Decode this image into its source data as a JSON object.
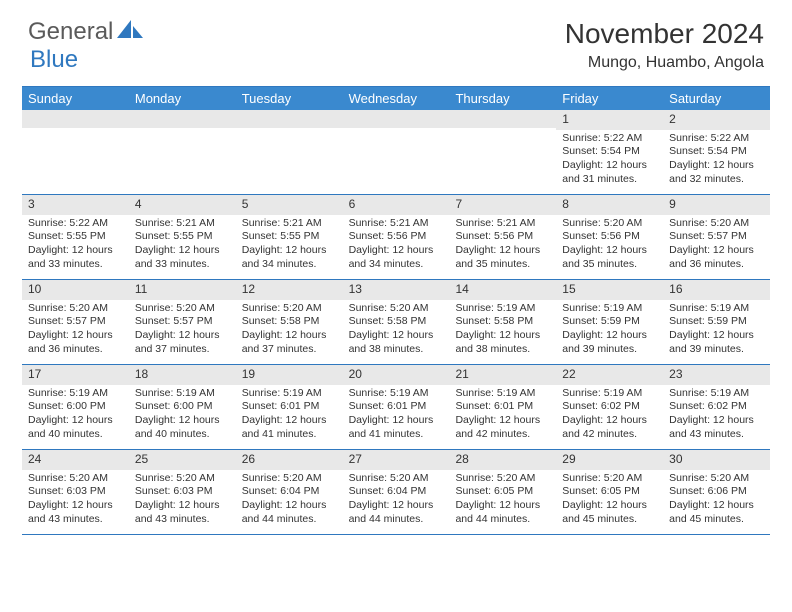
{
  "logo": {
    "general": "General",
    "blue": "Blue"
  },
  "header": {
    "month_title": "November 2024",
    "location": "Mungo, Huambo, Angola"
  },
  "colors": {
    "header_bg": "#3a89cf",
    "border": "#2f78bf",
    "daynum_bg": "#e8e8e8",
    "text": "#333333",
    "logo_gray": "#5a5a5a",
    "logo_blue": "#2f78bf"
  },
  "day_names": [
    "Sunday",
    "Monday",
    "Tuesday",
    "Wednesday",
    "Thursday",
    "Friday",
    "Saturday"
  ],
  "weeks": [
    [
      {
        "n": "",
        "sunrise": "",
        "sunset": "",
        "daylight_a": "",
        "daylight_b": ""
      },
      {
        "n": "",
        "sunrise": "",
        "sunset": "",
        "daylight_a": "",
        "daylight_b": ""
      },
      {
        "n": "",
        "sunrise": "",
        "sunset": "",
        "daylight_a": "",
        "daylight_b": ""
      },
      {
        "n": "",
        "sunrise": "",
        "sunset": "",
        "daylight_a": "",
        "daylight_b": ""
      },
      {
        "n": "",
        "sunrise": "",
        "sunset": "",
        "daylight_a": "",
        "daylight_b": ""
      },
      {
        "n": "1",
        "sunrise": "Sunrise: 5:22 AM",
        "sunset": "Sunset: 5:54 PM",
        "daylight_a": "Daylight: 12 hours",
        "daylight_b": "and 31 minutes."
      },
      {
        "n": "2",
        "sunrise": "Sunrise: 5:22 AM",
        "sunset": "Sunset: 5:54 PM",
        "daylight_a": "Daylight: 12 hours",
        "daylight_b": "and 32 minutes."
      }
    ],
    [
      {
        "n": "3",
        "sunrise": "Sunrise: 5:22 AM",
        "sunset": "Sunset: 5:55 PM",
        "daylight_a": "Daylight: 12 hours",
        "daylight_b": "and 33 minutes."
      },
      {
        "n": "4",
        "sunrise": "Sunrise: 5:21 AM",
        "sunset": "Sunset: 5:55 PM",
        "daylight_a": "Daylight: 12 hours",
        "daylight_b": "and 33 minutes."
      },
      {
        "n": "5",
        "sunrise": "Sunrise: 5:21 AM",
        "sunset": "Sunset: 5:55 PM",
        "daylight_a": "Daylight: 12 hours",
        "daylight_b": "and 34 minutes."
      },
      {
        "n": "6",
        "sunrise": "Sunrise: 5:21 AM",
        "sunset": "Sunset: 5:56 PM",
        "daylight_a": "Daylight: 12 hours",
        "daylight_b": "and 34 minutes."
      },
      {
        "n": "7",
        "sunrise": "Sunrise: 5:21 AM",
        "sunset": "Sunset: 5:56 PM",
        "daylight_a": "Daylight: 12 hours",
        "daylight_b": "and 35 minutes."
      },
      {
        "n": "8",
        "sunrise": "Sunrise: 5:20 AM",
        "sunset": "Sunset: 5:56 PM",
        "daylight_a": "Daylight: 12 hours",
        "daylight_b": "and 35 minutes."
      },
      {
        "n": "9",
        "sunrise": "Sunrise: 5:20 AM",
        "sunset": "Sunset: 5:57 PM",
        "daylight_a": "Daylight: 12 hours",
        "daylight_b": "and 36 minutes."
      }
    ],
    [
      {
        "n": "10",
        "sunrise": "Sunrise: 5:20 AM",
        "sunset": "Sunset: 5:57 PM",
        "daylight_a": "Daylight: 12 hours",
        "daylight_b": "and 36 minutes."
      },
      {
        "n": "11",
        "sunrise": "Sunrise: 5:20 AM",
        "sunset": "Sunset: 5:57 PM",
        "daylight_a": "Daylight: 12 hours",
        "daylight_b": "and 37 minutes."
      },
      {
        "n": "12",
        "sunrise": "Sunrise: 5:20 AM",
        "sunset": "Sunset: 5:58 PM",
        "daylight_a": "Daylight: 12 hours",
        "daylight_b": "and 37 minutes."
      },
      {
        "n": "13",
        "sunrise": "Sunrise: 5:20 AM",
        "sunset": "Sunset: 5:58 PM",
        "daylight_a": "Daylight: 12 hours",
        "daylight_b": "and 38 minutes."
      },
      {
        "n": "14",
        "sunrise": "Sunrise: 5:19 AM",
        "sunset": "Sunset: 5:58 PM",
        "daylight_a": "Daylight: 12 hours",
        "daylight_b": "and 38 minutes."
      },
      {
        "n": "15",
        "sunrise": "Sunrise: 5:19 AM",
        "sunset": "Sunset: 5:59 PM",
        "daylight_a": "Daylight: 12 hours",
        "daylight_b": "and 39 minutes."
      },
      {
        "n": "16",
        "sunrise": "Sunrise: 5:19 AM",
        "sunset": "Sunset: 5:59 PM",
        "daylight_a": "Daylight: 12 hours",
        "daylight_b": "and 39 minutes."
      }
    ],
    [
      {
        "n": "17",
        "sunrise": "Sunrise: 5:19 AM",
        "sunset": "Sunset: 6:00 PM",
        "daylight_a": "Daylight: 12 hours",
        "daylight_b": "and 40 minutes."
      },
      {
        "n": "18",
        "sunrise": "Sunrise: 5:19 AM",
        "sunset": "Sunset: 6:00 PM",
        "daylight_a": "Daylight: 12 hours",
        "daylight_b": "and 40 minutes."
      },
      {
        "n": "19",
        "sunrise": "Sunrise: 5:19 AM",
        "sunset": "Sunset: 6:01 PM",
        "daylight_a": "Daylight: 12 hours",
        "daylight_b": "and 41 minutes."
      },
      {
        "n": "20",
        "sunrise": "Sunrise: 5:19 AM",
        "sunset": "Sunset: 6:01 PM",
        "daylight_a": "Daylight: 12 hours",
        "daylight_b": "and 41 minutes."
      },
      {
        "n": "21",
        "sunrise": "Sunrise: 5:19 AM",
        "sunset": "Sunset: 6:01 PM",
        "daylight_a": "Daylight: 12 hours",
        "daylight_b": "and 42 minutes."
      },
      {
        "n": "22",
        "sunrise": "Sunrise: 5:19 AM",
        "sunset": "Sunset: 6:02 PM",
        "daylight_a": "Daylight: 12 hours",
        "daylight_b": "and 42 minutes."
      },
      {
        "n": "23",
        "sunrise": "Sunrise: 5:19 AM",
        "sunset": "Sunset: 6:02 PM",
        "daylight_a": "Daylight: 12 hours",
        "daylight_b": "and 43 minutes."
      }
    ],
    [
      {
        "n": "24",
        "sunrise": "Sunrise: 5:20 AM",
        "sunset": "Sunset: 6:03 PM",
        "daylight_a": "Daylight: 12 hours",
        "daylight_b": "and 43 minutes."
      },
      {
        "n": "25",
        "sunrise": "Sunrise: 5:20 AM",
        "sunset": "Sunset: 6:03 PM",
        "daylight_a": "Daylight: 12 hours",
        "daylight_b": "and 43 minutes."
      },
      {
        "n": "26",
        "sunrise": "Sunrise: 5:20 AM",
        "sunset": "Sunset: 6:04 PM",
        "daylight_a": "Daylight: 12 hours",
        "daylight_b": "and 44 minutes."
      },
      {
        "n": "27",
        "sunrise": "Sunrise: 5:20 AM",
        "sunset": "Sunset: 6:04 PM",
        "daylight_a": "Daylight: 12 hours",
        "daylight_b": "and 44 minutes."
      },
      {
        "n": "28",
        "sunrise": "Sunrise: 5:20 AM",
        "sunset": "Sunset: 6:05 PM",
        "daylight_a": "Daylight: 12 hours",
        "daylight_b": "and 44 minutes."
      },
      {
        "n": "29",
        "sunrise": "Sunrise: 5:20 AM",
        "sunset": "Sunset: 6:05 PM",
        "daylight_a": "Daylight: 12 hours",
        "daylight_b": "and 45 minutes."
      },
      {
        "n": "30",
        "sunrise": "Sunrise: 5:20 AM",
        "sunset": "Sunset: 6:06 PM",
        "daylight_a": "Daylight: 12 hours",
        "daylight_b": "and 45 minutes."
      }
    ]
  ]
}
